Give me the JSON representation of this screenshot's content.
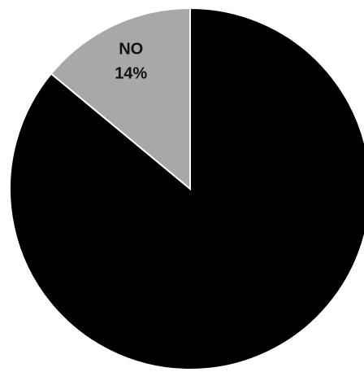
{
  "chart_data": {
    "type": "pie",
    "categories": [
      null,
      "NO"
    ],
    "values": [
      86,
      14
    ],
    "value_labels": [
      null,
      "14%"
    ],
    "colors": [
      "#000000",
      "#a8a8a8"
    ]
  }
}
